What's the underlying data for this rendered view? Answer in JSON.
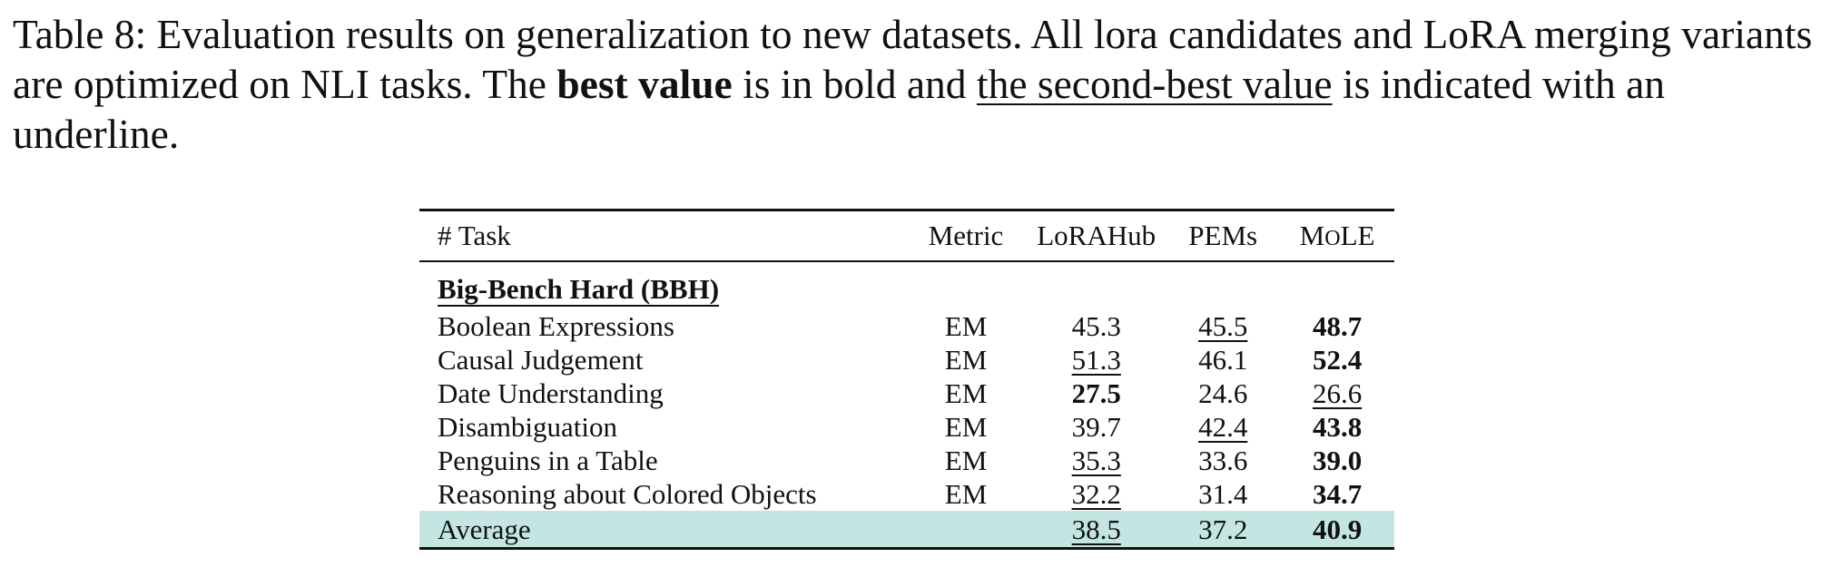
{
  "caption": {
    "part1": "Table 8: Evaluation results on generalization to new datasets. All lora candidates and LoRA merging variants are optimized on NLI tasks. The ",
    "best_text": "best value",
    "part2": " is in bold and ",
    "second_text": "the second-best value",
    "part3": " is indicated with an underline."
  },
  "table": {
    "headers": {
      "task": "# Task",
      "metric": "Metric",
      "lorahub": "LoRAHub",
      "pems": "PEMs",
      "mole_prefix": "M",
      "mole_small": "O",
      "mole_suffix": "LE"
    },
    "section": "Big-Bench Hard (BBH)",
    "rows": [
      {
        "task": "Boolean Expressions",
        "metric": "EM",
        "lorahub": "45.3",
        "pems": "45.5",
        "mole": "48.7"
      },
      {
        "task": "Causal Judgement",
        "metric": "EM",
        "lorahub": "51.3",
        "pems": "46.1",
        "mole": "52.4"
      },
      {
        "task": "Date Understanding",
        "metric": "EM",
        "lorahub": "27.5",
        "pems": "24.6",
        "mole": "26.6"
      },
      {
        "task": "Disambiguation",
        "metric": "EM",
        "lorahub": "39.7",
        "pems": "42.4",
        "mole": "43.8"
      },
      {
        "task": "Penguins in a Table",
        "metric": "EM",
        "lorahub": "35.3",
        "pems": "33.6",
        "mole": "39.0"
      },
      {
        "task": "Reasoning about Colored Objects",
        "metric": "EM",
        "lorahub": "32.2",
        "pems": "31.4",
        "mole": "34.7"
      }
    ],
    "average": {
      "task": "Average",
      "metric": "",
      "lorahub": "38.5",
      "pems": "37.2",
      "mole": "40.9"
    },
    "highlight_color": "#c3e6e3"
  }
}
